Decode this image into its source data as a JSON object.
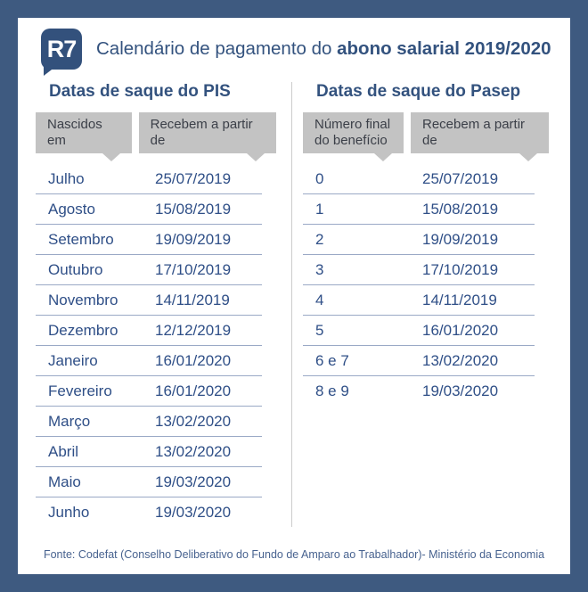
{
  "header": {
    "logo_text": "R7",
    "title_regular": "Calendário de pagamento do ",
    "title_bold": "abono salarial 2019/2020"
  },
  "colors": {
    "frame": "#3e5a80",
    "panel": "#ffffff",
    "logo": "#33517c",
    "navy": "#33527e",
    "row_text": "#2f4f87",
    "row_border": "#9aa9c6",
    "chip_bg": "#c3c3c3",
    "chip_text": "#3b3f48",
    "divider": "#cccccc",
    "footer_text": "#47628f"
  },
  "pis": {
    "heading": "Datas de saque do PIS",
    "col1_header": "Nascidos em",
    "col2_header": "Recebem a partir de",
    "rows": [
      {
        "label": "Julho",
        "date": "25/07/2019"
      },
      {
        "label": "Agosto",
        "date": "15/08/2019"
      },
      {
        "label": "Setembro",
        "date": "19/09/2019"
      },
      {
        "label": "Outubro",
        "date": "17/10/2019"
      },
      {
        "label": "Novembro",
        "date": "14/11/2019"
      },
      {
        "label": "Dezembro",
        "date": "12/12/2019"
      },
      {
        "label": "Janeiro",
        "date": "16/01/2020"
      },
      {
        "label": "Fevereiro",
        "date": "16/01/2020"
      },
      {
        "label": "Março",
        "date": "13/02/2020"
      },
      {
        "label": "Abril",
        "date": "13/02/2020"
      },
      {
        "label": "Maio",
        "date": "19/03/2020"
      },
      {
        "label": "Junho",
        "date": "19/03/2020"
      }
    ]
  },
  "pasep": {
    "heading": "Datas de saque do Pasep",
    "col1_header": "Número final do benefício",
    "col2_header": "Recebem a partir de",
    "rows": [
      {
        "label": "0",
        "date": "25/07/2019"
      },
      {
        "label": "1",
        "date": "15/08/2019"
      },
      {
        "label": "2",
        "date": "19/09/2019"
      },
      {
        "label": "3",
        "date": "17/10/2019"
      },
      {
        "label": "4",
        "date": "14/11/2019"
      },
      {
        "label": "5",
        "date": "16/01/2020"
      },
      {
        "label": "6 e 7",
        "date": "13/02/2020"
      },
      {
        "label": "8 e 9",
        "date": "19/03/2020"
      }
    ]
  },
  "footer": {
    "source": "Fonte: Codefat (Conselho Deliberativo do Fundo de Amparo ao Trabalhador)- Ministério da Economia"
  }
}
